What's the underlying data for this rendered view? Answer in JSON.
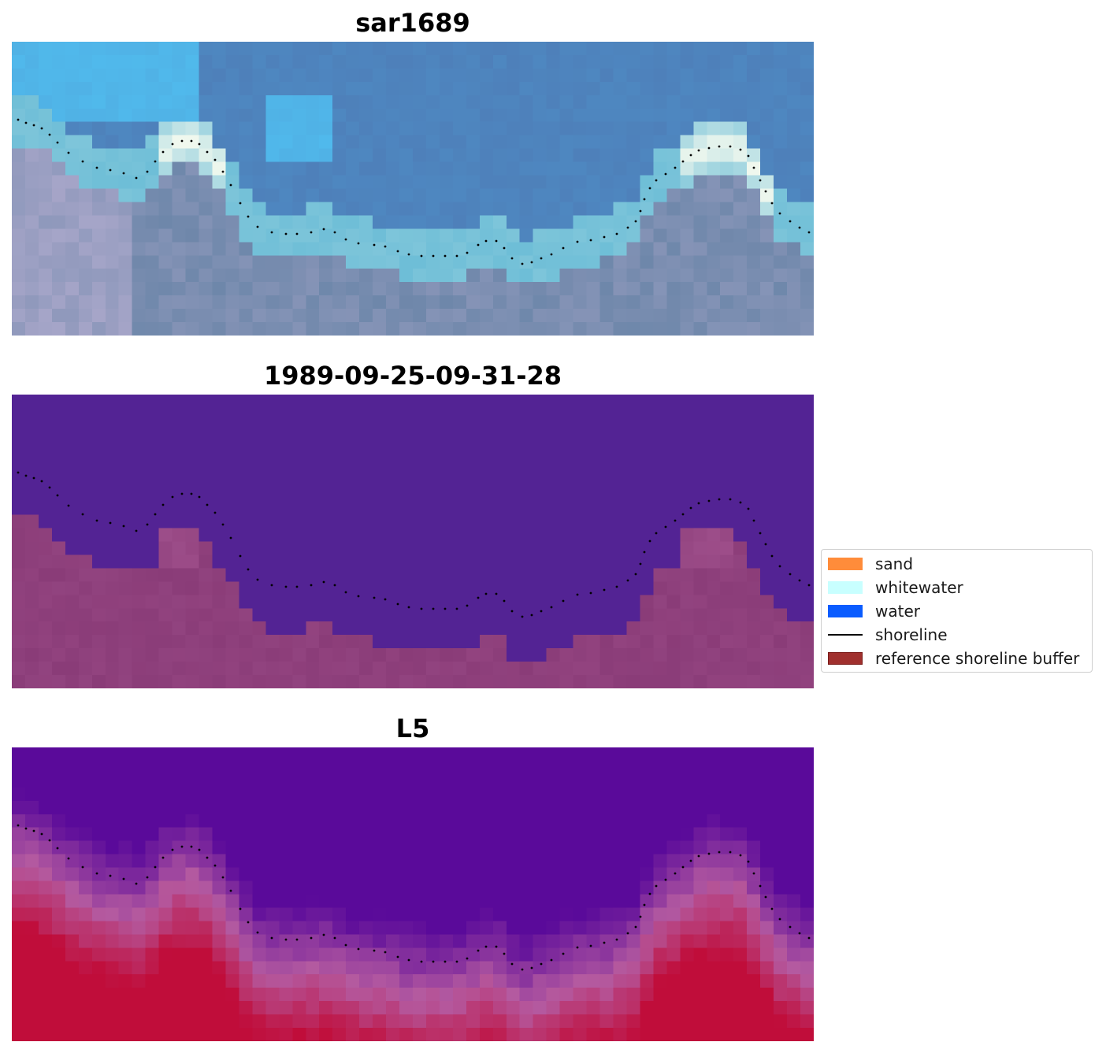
{
  "panels": [
    {
      "title": "sar1689",
      "style": "rgb"
    },
    {
      "title": "1989-09-25-09-31-28",
      "style": "classified"
    },
    {
      "title": "L5",
      "style": "index"
    }
  ],
  "legend": {
    "items": [
      {
        "label": "sand",
        "color": "#ff8c3a",
        "kind": "patch"
      },
      {
        "label": "whitewater",
        "color": "#c8ffff",
        "kind": "patch"
      },
      {
        "label": "water",
        "color": "#0a5cff",
        "kind": "patch"
      },
      {
        "label": "shoreline",
        "color": "#000000",
        "kind": "line"
      },
      {
        "label": "reference shoreline buffer",
        "color": "#a0302e",
        "kind": "patch-edged"
      }
    ]
  },
  "colors": {
    "classified_water": "#532394",
    "classified_buffer": "#8a3c78",
    "index_low": "#5a0a9a",
    "index_high": "#c00d3a",
    "shoreline_dots": "#000000"
  }
}
